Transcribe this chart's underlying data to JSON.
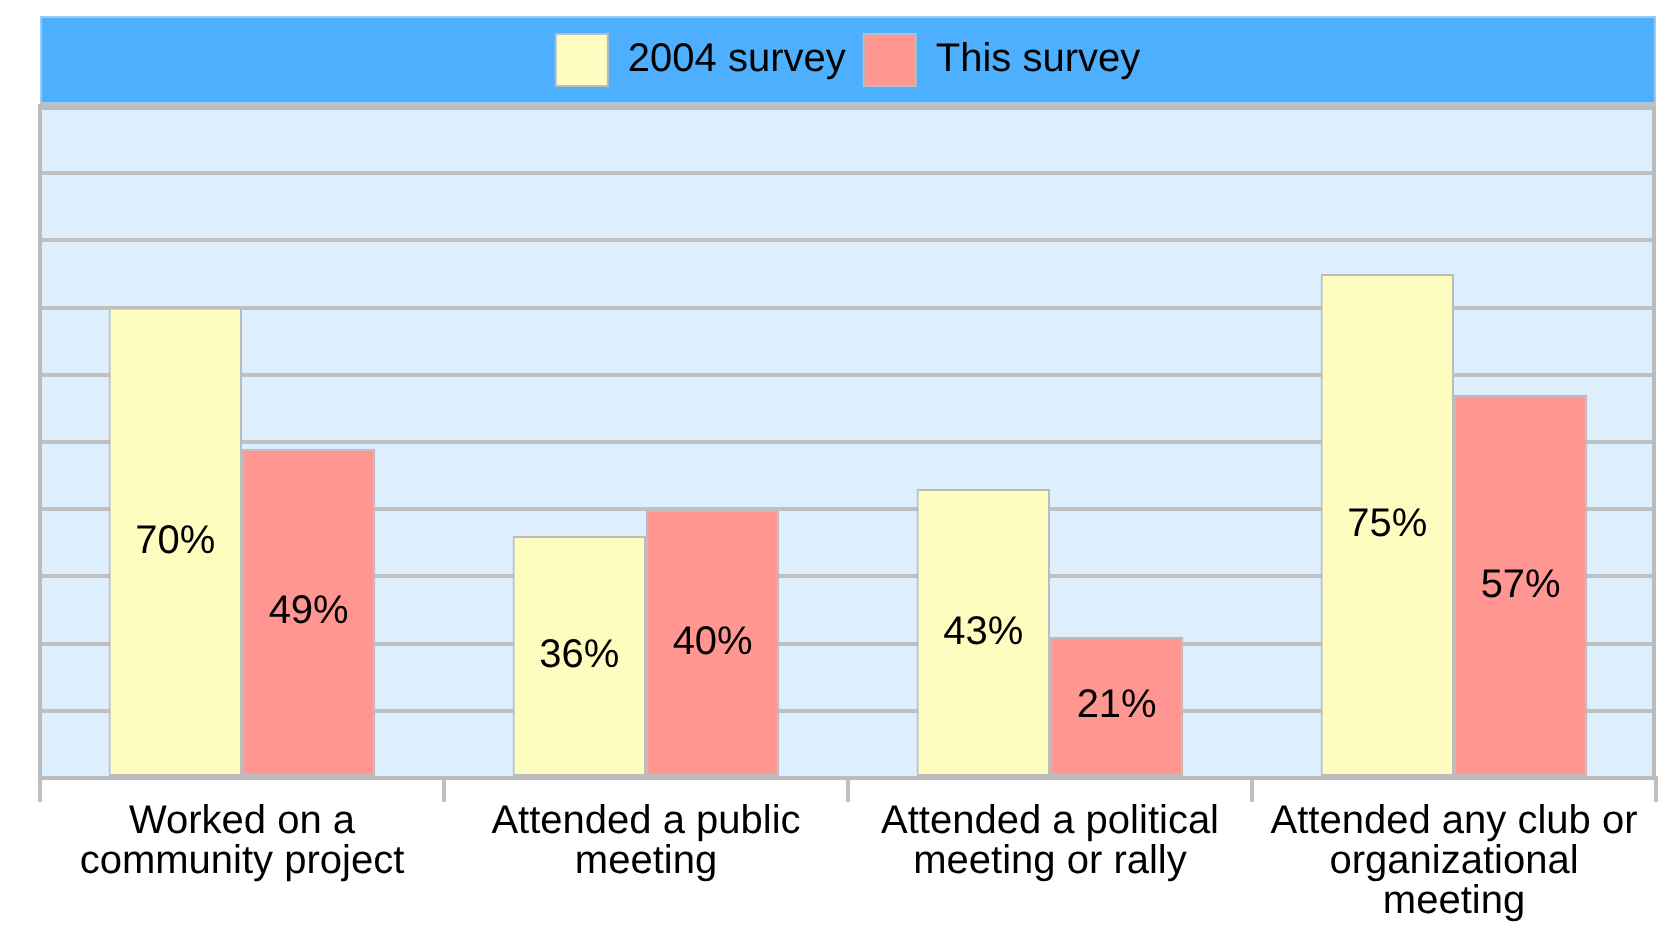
{
  "chart_data": {
    "type": "bar",
    "categories": [
      "Worked on a community project",
      "Attended a public meeting",
      "Attended a political meeting or rally",
      "Attended any club or organizational meeting"
    ],
    "series": [
      {
        "name": "2004 survey",
        "color": "#fffcc0",
        "values": [
          70,
          36,
          43,
          75
        ],
        "value_labels": [
          "70%",
          "36%",
          "43%",
          "75%"
        ]
      },
      {
        "name": "This survey",
        "color": "#ff9691",
        "values": [
          49,
          40,
          21,
          57
        ],
        "value_labels": [
          "49%",
          "40%",
          "21%",
          "57%"
        ]
      }
    ],
    "ylim": [
      0,
      100
    ],
    "grid": "y",
    "legend": "top",
    "tick_labels": "x"
  }
}
